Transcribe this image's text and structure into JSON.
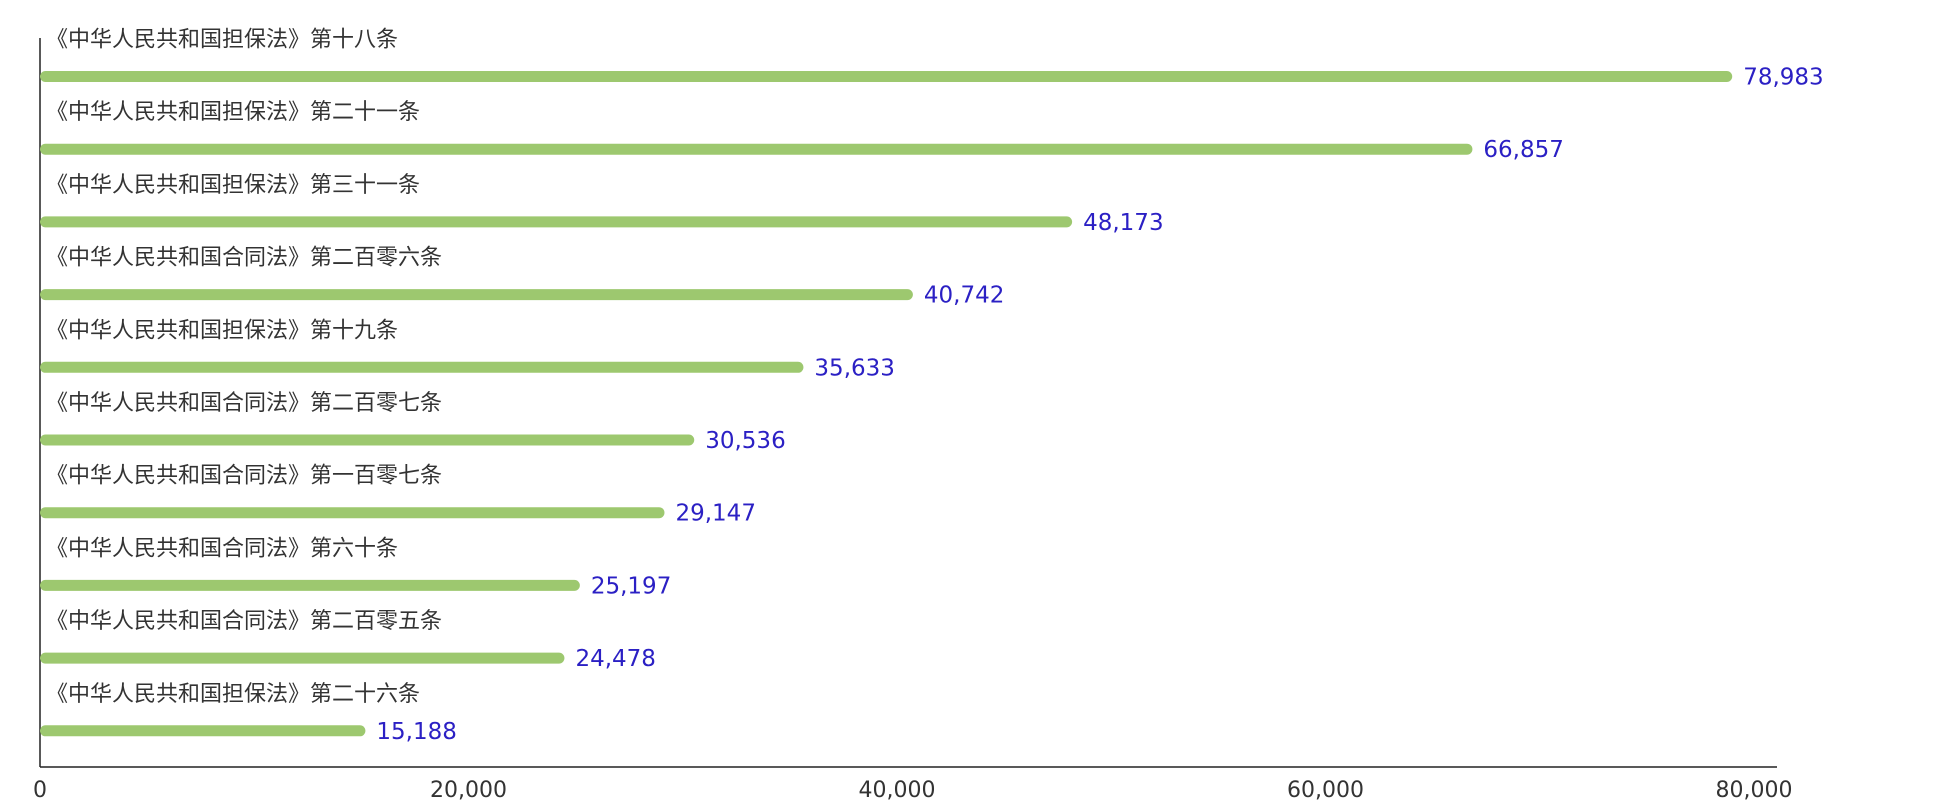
{
  "chart_data": {
    "type": "bar",
    "orientation": "horizontal",
    "title": "",
    "xlabel": "",
    "ylabel": "",
    "xlim": [
      0,
      80000
    ],
    "grid": false,
    "legend": "none",
    "bar_color": "#9dc86f",
    "value_label_color": "#2b20c4",
    "categories": [
      "《中华人民共和国担保法》第十八条",
      "《中华人民共和国担保法》第二十一条",
      "《中华人民共和国担保法》第三十一条",
      "《中华人民共和国合同法》第二百零六条",
      "《中华人民共和国担保法》第十九条",
      "《中华人民共和国合同法》第二百零七条",
      "《中华人民共和国合同法》第一百零七条",
      "《中华人民共和国合同法》第六十条",
      "《中华人民共和国合同法》第二百零五条",
      "《中华人民共和国担保法》第二十六条"
    ],
    "values": [
      78983,
      66857,
      48173,
      40742,
      35633,
      30536,
      29147,
      25197,
      24478,
      15188
    ],
    "value_labels": [
      "78,983",
      "66,857",
      "48,173",
      "40,742",
      "35,633",
      "30,536",
      "29,147",
      "25,197",
      "24,478",
      "15,188"
    ],
    "x_ticks": [
      0,
      20000,
      40000,
      60000,
      80000
    ],
    "x_tick_labels": [
      "0",
      "20,000",
      "40,000",
      "60,000",
      "80,000"
    ]
  }
}
